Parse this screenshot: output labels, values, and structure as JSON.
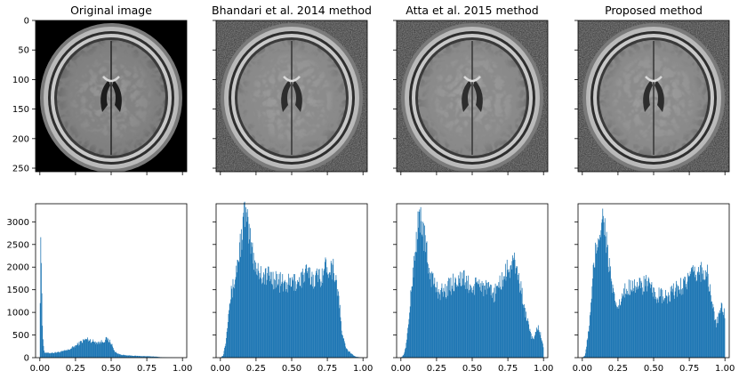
{
  "figure": {
    "image_panels": [
      {
        "title": "Original image",
        "variant": "original"
      },
      {
        "title": "Bhandari et al. 2014 method",
        "variant": "bhandari"
      },
      {
        "title": "Atta et al. 2015 method",
        "variant": "atta"
      },
      {
        "title": "Proposed method",
        "variant": "proposed"
      }
    ],
    "image_axes": {
      "ytick_labels": [
        "0",
        "50",
        "100",
        "150",
        "200",
        "250"
      ],
      "ytick_values": [
        0,
        50,
        100,
        150,
        200,
        250
      ],
      "xlim": [
        0,
        256
      ],
      "ylim": [
        256,
        0
      ]
    },
    "colors": {
      "bar": "#1f77b4",
      "axis": "#000000",
      "background": "#ffffff"
    }
  },
  "chart_data": [
    {
      "type": "bar",
      "panel": "Original image",
      "xlim": [
        -0.03,
        1.03
      ],
      "ylim": [
        0,
        3400
      ],
      "xticks": [
        "0.00",
        "0.25",
        "0.50",
        "0.75",
        "1.00"
      ],
      "yticks": [
        "0",
        "500",
        "1000",
        "1500",
        "2000",
        "2500",
        "3000"
      ],
      "bins": 256,
      "profile": [
        [
          0.0,
          400
        ],
        [
          0.005,
          2950
        ],
        [
          0.01,
          2100
        ],
        [
          0.015,
          950
        ],
        [
          0.02,
          500
        ],
        [
          0.03,
          120
        ],
        [
          0.05,
          100
        ],
        [
          0.1,
          110
        ],
        [
          0.15,
          130
        ],
        [
          0.2,
          170
        ],
        [
          0.25,
          260
        ],
        [
          0.3,
          370
        ],
        [
          0.33,
          410
        ],
        [
          0.37,
          360
        ],
        [
          0.42,
          330
        ],
        [
          0.47,
          410
        ],
        [
          0.5,
          330
        ],
        [
          0.52,
          150
        ],
        [
          0.55,
          80
        ],
        [
          0.6,
          50
        ],
        [
          0.7,
          35
        ],
        [
          0.8,
          25
        ],
        [
          0.85,
          10
        ],
        [
          0.9,
          3
        ],
        [
          1.0,
          0
        ]
      ]
    },
    {
      "type": "bar",
      "panel": "Bhandari et al. 2014 method",
      "xlim": [
        -0.03,
        1.03
      ],
      "ylim": [
        0,
        3400
      ],
      "xticks": [
        "0.00",
        "0.25",
        "0.50",
        "0.75",
        "1.00"
      ],
      "yticks": [
        "0",
        "500",
        "1000",
        "1500",
        "2000",
        "2500",
        "3000"
      ],
      "bins": 256,
      "profile": [
        [
          0.0,
          0
        ],
        [
          0.02,
          50
        ],
        [
          0.04,
          400
        ],
        [
          0.06,
          1200
        ],
        [
          0.1,
          1700
        ],
        [
          0.13,
          2300
        ],
        [
          0.16,
          2900
        ],
        [
          0.17,
          3250
        ],
        [
          0.2,
          2700
        ],
        [
          0.25,
          2000
        ],
        [
          0.3,
          1800
        ],
        [
          0.35,
          1800
        ],
        [
          0.4,
          1700
        ],
        [
          0.45,
          1600
        ],
        [
          0.5,
          1650
        ],
        [
          0.55,
          1700
        ],
        [
          0.6,
          1850
        ],
        [
          0.65,
          1750
        ],
        [
          0.7,
          1800
        ],
        [
          0.75,
          2050
        ],
        [
          0.8,
          1950
        ],
        [
          0.83,
          1300
        ],
        [
          0.85,
          600
        ],
        [
          0.88,
          200
        ],
        [
          0.92,
          80
        ],
        [
          0.95,
          20
        ],
        [
          1.0,
          0
        ]
      ]
    },
    {
      "type": "bar",
      "panel": "Atta et al. 2015 method",
      "xlim": [
        -0.03,
        1.03
      ],
      "ylim": [
        0,
        3400
      ],
      "xticks": [
        "0.00",
        "0.25",
        "0.50",
        "0.75",
        "1.00"
      ],
      "yticks": [
        "0",
        "500",
        "1000",
        "1500",
        "2000",
        "2500",
        "3000"
      ],
      "bins": 256,
      "profile": [
        [
          0.0,
          0
        ],
        [
          0.02,
          60
        ],
        [
          0.04,
          350
        ],
        [
          0.06,
          1000
        ],
        [
          0.09,
          2100
        ],
        [
          0.12,
          2900
        ],
        [
          0.14,
          3150
        ],
        [
          0.17,
          2500
        ],
        [
          0.2,
          1900
        ],
        [
          0.25,
          1500
        ],
        [
          0.3,
          1450
        ],
        [
          0.35,
          1600
        ],
        [
          0.4,
          1750
        ],
        [
          0.45,
          1700
        ],
        [
          0.5,
          1500
        ],
        [
          0.55,
          1650
        ],
        [
          0.6,
          1500
        ],
        [
          0.65,
          1400
        ],
        [
          0.7,
          1650
        ],
        [
          0.75,
          1950
        ],
        [
          0.8,
          2100
        ],
        [
          0.83,
          1700
        ],
        [
          0.86,
          1200
        ],
        [
          0.9,
          600
        ],
        [
          0.93,
          350
        ],
        [
          0.96,
          700
        ],
        [
          0.98,
          500
        ],
        [
          1.0,
          200
        ]
      ]
    },
    {
      "type": "bar",
      "panel": "Proposed method",
      "xlim": [
        -0.03,
        1.03
      ],
      "ylim": [
        0,
        3400
      ],
      "xticks": [
        "0.00",
        "0.25",
        "0.50",
        "0.75",
        "1.00"
      ],
      "yticks": [
        "0",
        "500",
        "1000",
        "1500",
        "2000",
        "2500",
        "3000"
      ],
      "bins": 256,
      "profile": [
        [
          0.0,
          0
        ],
        [
          0.02,
          50
        ],
        [
          0.04,
          500
        ],
        [
          0.06,
          1100
        ],
        [
          0.08,
          2000
        ],
        [
          0.11,
          2700
        ],
        [
          0.13,
          2900
        ],
        [
          0.15,
          3150
        ],
        [
          0.18,
          2200
        ],
        [
          0.22,
          1300
        ],
        [
          0.25,
          1100
        ],
        [
          0.3,
          1450
        ],
        [
          0.35,
          1650
        ],
        [
          0.4,
          1550
        ],
        [
          0.45,
          1650
        ],
        [
          0.5,
          1400
        ],
        [
          0.55,
          1350
        ],
        [
          0.6,
          1300
        ],
        [
          0.65,
          1500
        ],
        [
          0.7,
          1600
        ],
        [
          0.75,
          1750
        ],
        [
          0.8,
          1850
        ],
        [
          0.85,
          1950
        ],
        [
          0.88,
          1800
        ],
        [
          0.91,
          1200
        ],
        [
          0.94,
          700
        ],
        [
          0.97,
          1100
        ],
        [
          1.0,
          1000
        ]
      ]
    }
  ]
}
